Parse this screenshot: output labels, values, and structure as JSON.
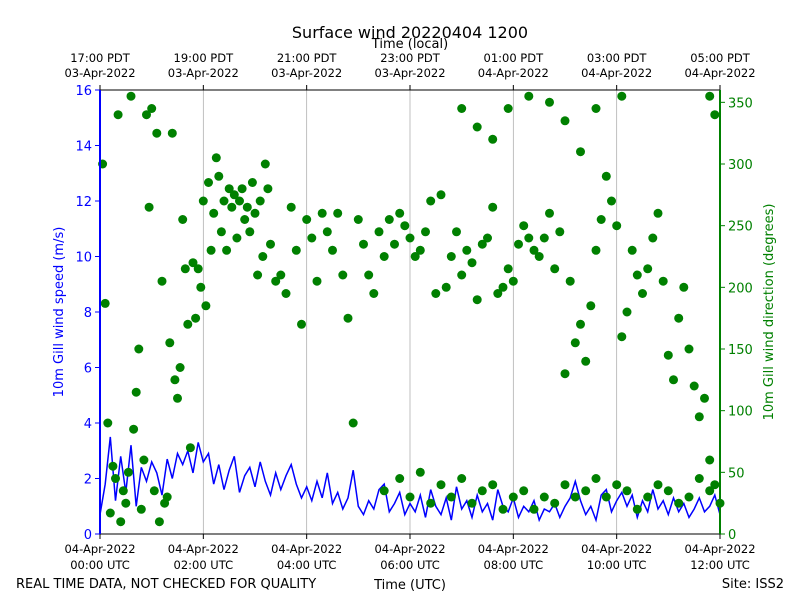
{
  "chart_data": {
    "type": "scatter",
    "title": "Surface wind 20220404 1200",
    "top_axis_label": "Time (local)",
    "xlabel": "Time (UTC)",
    "ylabel_left": "10m Gill wind speed (m/s)",
    "ylabel_right": "10m Gill wind direction (degrees)",
    "footer_left": "REAL TIME DATA, NOT CHECKED FOR QUALITY",
    "footer_right": "Site: ISS2",
    "xlim_hours": [
      0,
      12
    ],
    "ylim_left": [
      0,
      16
    ],
    "ylim_right": [
      0,
      360
    ],
    "yticks_left": [
      0,
      2,
      4,
      6,
      8,
      10,
      12,
      14,
      16
    ],
    "yticks_right": [
      0,
      50,
      100,
      150,
      200,
      250,
      300,
      350
    ],
    "bottom_ticks": [
      {
        "hour": 0,
        "line1": "04-Apr-2022",
        "line2": "00:00 UTC"
      },
      {
        "hour": 2,
        "line1": "04-Apr-2022",
        "line2": "02:00 UTC"
      },
      {
        "hour": 4,
        "line1": "04-Apr-2022",
        "line2": "04:00 UTC"
      },
      {
        "hour": 6,
        "line1": "04-Apr-2022",
        "line2": "06:00 UTC"
      },
      {
        "hour": 8,
        "line1": "04-Apr-2022",
        "line2": "08:00 UTC"
      },
      {
        "hour": 10,
        "line1": "04-Apr-2022",
        "line2": "10:00 UTC"
      },
      {
        "hour": 12,
        "line1": "04-Apr-2022",
        "line2": "12:00 UTC"
      }
    ],
    "top_ticks": [
      {
        "hour": 0,
        "line1": "17:00 PDT",
        "line2": "03-Apr-2022"
      },
      {
        "hour": 2,
        "line1": "19:00 PDT",
        "line2": "03-Apr-2022"
      },
      {
        "hour": 4,
        "line1": "21:00 PDT",
        "line2": "03-Apr-2022"
      },
      {
        "hour": 6,
        "line1": "23:00 PDT",
        "line2": "03-Apr-2022"
      },
      {
        "hour": 8,
        "line1": "01:00 PDT",
        "line2": "04-Apr-2022"
      },
      {
        "hour": 10,
        "line1": "03:00 PDT",
        "line2": "04-Apr-2022"
      },
      {
        "hour": 12,
        "line1": "05:00 PDT",
        "line2": "04-Apr-2022"
      }
    ],
    "colors": {
      "speed": "#0000ff",
      "direction": "#008000",
      "grid": "#b0b0b0"
    },
    "speed_series": {
      "name": "10m Gill wind speed (m/s)",
      "hours": [
        0.0,
        0.1,
        0.2,
        0.3,
        0.4,
        0.5,
        0.6,
        0.7,
        0.8,
        0.9,
        1.0,
        1.1,
        1.2,
        1.3,
        1.4,
        1.5,
        1.6,
        1.7,
        1.8,
        1.9,
        2.0,
        2.1,
        2.2,
        2.3,
        2.4,
        2.5,
        2.6,
        2.7,
        2.8,
        2.9,
        3.0,
        3.1,
        3.2,
        3.3,
        3.4,
        3.5,
        3.6,
        3.7,
        3.8,
        3.9,
        4.0,
        4.1,
        4.2,
        4.3,
        4.4,
        4.5,
        4.6,
        4.7,
        4.8,
        4.9,
        5.0,
        5.1,
        5.2,
        5.3,
        5.4,
        5.5,
        5.6,
        5.7,
        5.8,
        5.9,
        6.0,
        6.1,
        6.2,
        6.3,
        6.4,
        6.5,
        6.6,
        6.7,
        6.8,
        6.9,
        7.0,
        7.1,
        7.2,
        7.3,
        7.4,
        7.5,
        7.6,
        7.7,
        7.8,
        7.9,
        8.0,
        8.1,
        8.2,
        8.3,
        8.4,
        8.5,
        8.6,
        8.7,
        8.8,
        8.9,
        9.0,
        9.1,
        9.2,
        9.3,
        9.4,
        9.5,
        9.6,
        9.7,
        9.8,
        9.9,
        10.0,
        10.1,
        10.2,
        10.3,
        10.4,
        10.5,
        10.6,
        10.7,
        10.8,
        10.9,
        11.0,
        11.1,
        11.2,
        11.3,
        11.4,
        11.5,
        11.6,
        11.7,
        11.8,
        11.9,
        12.0
      ],
      "values": [
        0.7,
        1.8,
        3.5,
        1.2,
        2.8,
        1.5,
        3.2,
        1.0,
        2.4,
        1.9,
        2.6,
        2.2,
        1.4,
        2.7,
        2.0,
        2.9,
        2.5,
        3.0,
        2.2,
        3.3,
        2.6,
        2.9,
        1.8,
        2.5,
        1.6,
        2.3,
        2.8,
        1.5,
        2.1,
        2.4,
        1.7,
        2.6,
        1.9,
        1.4,
        2.2,
        1.6,
        2.1,
        2.5,
        1.8,
        1.3,
        1.7,
        1.2,
        1.9,
        1.3,
        2.2,
        1.1,
        1.5,
        0.9,
        1.3,
        2.3,
        1.0,
        0.7,
        1.2,
        0.9,
        1.6,
        1.8,
        0.8,
        1.1,
        1.5,
        0.7,
        1.1,
        0.8,
        1.4,
        0.6,
        1.6,
        1.0,
        0.7,
        1.3,
        0.5,
        1.7,
        0.9,
        1.2,
        0.6,
        1.4,
        0.8,
        1.1,
        0.5,
        1.6,
        1.0,
        0.8,
        1.3,
        0.6,
        1.0,
        0.8,
        1.2,
        0.5,
        0.9,
        0.8,
        1.1,
        0.6,
        1.0,
        1.3,
        1.9,
        1.2,
        0.7,
        1.0,
        0.5,
        1.4,
        1.6,
        0.8,
        1.2,
        1.5,
        1.0,
        1.4,
        0.6,
        1.2,
        0.8,
        1.6,
        0.9,
        1.2,
        0.7,
        1.3,
        0.8,
        1.1,
        0.6,
        0.9,
        1.3,
        0.8,
        1.0,
        1.4,
        0.7
      ]
    },
    "direction_series": {
      "name": "10m Gill wind direction (degrees)",
      "points": [
        [
          0.05,
          300
        ],
        [
          0.1,
          187
        ],
        [
          0.15,
          90
        ],
        [
          0.2,
          17
        ],
        [
          0.25,
          55
        ],
        [
          0.3,
          45
        ],
        [
          0.35,
          340
        ],
        [
          0.4,
          10
        ],
        [
          0.45,
          35
        ],
        [
          0.5,
          25
        ],
        [
          0.55,
          50
        ],
        [
          0.6,
          355
        ],
        [
          0.65,
          85
        ],
        [
          0.7,
          115
        ],
        [
          0.75,
          150
        ],
        [
          0.8,
          20
        ],
        [
          0.85,
          60
        ],
        [
          0.9,
          340
        ],
        [
          0.95,
          265
        ],
        [
          1.0,
          345
        ],
        [
          1.05,
          35
        ],
        [
          1.1,
          325
        ],
        [
          1.15,
          10
        ],
        [
          1.2,
          205
        ],
        [
          1.25,
          25
        ],
        [
          1.3,
          30
        ],
        [
          1.35,
          155
        ],
        [
          1.4,
          325
        ],
        [
          1.45,
          125
        ],
        [
          1.5,
          110
        ],
        [
          1.55,
          135
        ],
        [
          1.6,
          255
        ],
        [
          1.65,
          215
        ],
        [
          1.7,
          170
        ],
        [
          1.75,
          70
        ],
        [
          1.8,
          220
        ],
        [
          1.85,
          175
        ],
        [
          1.9,
          215
        ],
        [
          1.95,
          200
        ],
        [
          2.0,
          270
        ],
        [
          2.05,
          185
        ],
        [
          2.1,
          285
        ],
        [
          2.15,
          230
        ],
        [
          2.2,
          260
        ],
        [
          2.25,
          305
        ],
        [
          2.3,
          290
        ],
        [
          2.35,
          245
        ],
        [
          2.4,
          270
        ],
        [
          2.45,
          230
        ],
        [
          2.5,
          280
        ],
        [
          2.55,
          265
        ],
        [
          2.6,
          275
        ],
        [
          2.65,
          240
        ],
        [
          2.7,
          270
        ],
        [
          2.75,
          280
        ],
        [
          2.8,
          255
        ],
        [
          2.85,
          265
        ],
        [
          2.9,
          245
        ],
        [
          2.95,
          285
        ],
        [
          3.0,
          260
        ],
        [
          3.05,
          210
        ],
        [
          3.1,
          270
        ],
        [
          3.15,
          225
        ],
        [
          3.2,
          300
        ],
        [
          3.25,
          280
        ],
        [
          3.3,
          235
        ],
        [
          3.4,
          205
        ],
        [
          3.5,
          210
        ],
        [
          3.6,
          195
        ],
        [
          3.7,
          265
        ],
        [
          3.8,
          230
        ],
        [
          3.9,
          170
        ],
        [
          4.0,
          255
        ],
        [
          4.1,
          240
        ],
        [
          4.2,
          205
        ],
        [
          4.3,
          260
        ],
        [
          4.4,
          245
        ],
        [
          4.5,
          230
        ],
        [
          4.6,
          260
        ],
        [
          4.7,
          210
        ],
        [
          4.8,
          175
        ],
        [
          4.9,
          90
        ],
        [
          5.0,
          255
        ],
        [
          5.1,
          235
        ],
        [
          5.2,
          210
        ],
        [
          5.3,
          195
        ],
        [
          5.4,
          245
        ],
        [
          5.5,
          225
        ],
        [
          5.6,
          255
        ],
        [
          5.7,
          235
        ],
        [
          5.8,
          260
        ],
        [
          5.9,
          250
        ],
        [
          6.0,
          240
        ],
        [
          6.1,
          225
        ],
        [
          6.2,
          230
        ],
        [
          6.3,
          245
        ],
        [
          6.4,
          270
        ],
        [
          6.5,
          195
        ],
        [
          6.6,
          275
        ],
        [
          6.7,
          200
        ],
        [
          6.8,
          225
        ],
        [
          6.9,
          245
        ],
        [
          7.0,
          210
        ],
        [
          7.1,
          230
        ],
        [
          7.2,
          220
        ],
        [
          7.3,
          190
        ],
        [
          7.4,
          235
        ],
        [
          7.5,
          240
        ],
        [
          7.6,
          265
        ],
        [
          7.7,
          195
        ],
        [
          7.8,
          200
        ],
        [
          7.9,
          215
        ],
        [
          8.0,
          205
        ],
        [
          8.1,
          235
        ],
        [
          8.2,
          250
        ],
        [
          8.3,
          240
        ],
        [
          8.4,
          230
        ],
        [
          8.5,
          225
        ],
        [
          8.6,
          240
        ],
        [
          8.7,
          260
        ],
        [
          8.8,
          215
        ],
        [
          8.9,
          245
        ],
        [
          9.0,
          130
        ],
        [
          9.1,
          205
        ],
        [
          9.2,
          155
        ],
        [
          9.3,
          170
        ],
        [
          9.4,
          140
        ],
        [
          9.5,
          185
        ],
        [
          9.6,
          230
        ],
        [
          9.7,
          255
        ],
        [
          9.8,
          290
        ],
        [
          9.9,
          270
        ],
        [
          10.0,
          250
        ],
        [
          10.1,
          160
        ],
        [
          10.2,
          180
        ],
        [
          10.3,
          230
        ],
        [
          10.4,
          210
        ],
        [
          10.5,
          195
        ],
        [
          10.6,
          215
        ],
        [
          10.7,
          240
        ],
        [
          10.8,
          260
        ],
        [
          10.9,
          205
        ],
        [
          11.0,
          145
        ],
        [
          11.1,
          125
        ],
        [
          11.2,
          175
        ],
        [
          11.3,
          200
        ],
        [
          11.4,
          150
        ],
        [
          11.5,
          120
        ],
        [
          11.6,
          95
        ],
        [
          11.7,
          110
        ],
        [
          11.8,
          60
        ],
        [
          11.9,
          40
        ],
        [
          12.0,
          25
        ],
        [
          5.5,
          35
        ],
        [
          5.8,
          45
        ],
        [
          6.0,
          30
        ],
        [
          6.2,
          50
        ],
        [
          6.4,
          25
        ],
        [
          6.6,
          40
        ],
        [
          6.8,
          30
        ],
        [
          7.0,
          45
        ],
        [
          7.2,
          25
        ],
        [
          7.4,
          35
        ],
        [
          7.6,
          40
        ],
        [
          7.8,
          20
        ],
        [
          8.0,
          30
        ],
        [
          8.2,
          35
        ],
        [
          8.4,
          20
        ],
        [
          8.6,
          30
        ],
        [
          8.8,
          25
        ],
        [
          9.0,
          40
        ],
        [
          9.2,
          30
        ],
        [
          9.4,
          35
        ],
        [
          9.6,
          45
        ],
        [
          9.8,
          30
        ],
        [
          10.0,
          40
        ],
        [
          10.2,
          35
        ],
        [
          10.4,
          20
        ],
        [
          10.6,
          30
        ],
        [
          10.8,
          40
        ],
        [
          11.0,
          35
        ],
        [
          11.2,
          25
        ],
        [
          11.4,
          30
        ],
        [
          11.6,
          45
        ],
        [
          11.8,
          35
        ],
        [
          7.0,
          345
        ],
        [
          7.3,
          330
        ],
        [
          7.6,
          320
        ],
        [
          7.9,
          345
        ],
        [
          8.3,
          355
        ],
        [
          8.7,
          350
        ],
        [
          9.0,
          335
        ],
        [
          9.3,
          310
        ],
        [
          9.6,
          345
        ],
        [
          10.1,
          355
        ],
        [
          11.8,
          355
        ],
        [
          11.9,
          340
        ]
      ]
    }
  }
}
